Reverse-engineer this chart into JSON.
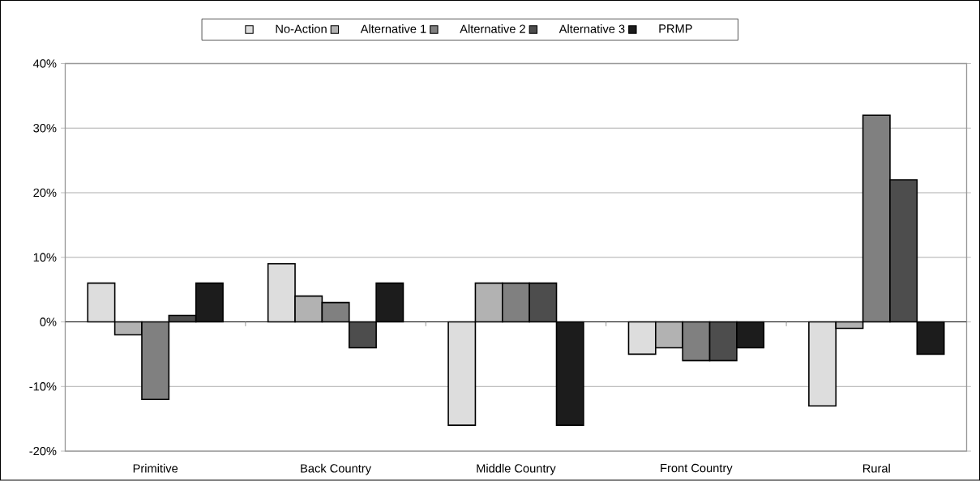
{
  "chart_data": {
    "type": "bar",
    "categories": [
      "Primitive",
      "Back Country",
      "Middle Country",
      "Front Country",
      "Rural"
    ],
    "series": [
      {
        "name": "No-Action",
        "color": "#dddddd",
        "values": [
          6,
          9,
          -16,
          -5,
          -13
        ]
      },
      {
        "name": "Alternative 1",
        "color": "#b2b2b2",
        "values": [
          -2,
          4,
          6,
          -4,
          -1
        ]
      },
      {
        "name": "Alternative 2",
        "color": "#808080",
        "values": [
          -12,
          3,
          6,
          -6,
          32
        ]
      },
      {
        "name": "Alternative 3",
        "color": "#4d4d4d",
        "values": [
          1,
          -4,
          6,
          -6,
          22
        ]
      },
      {
        "name": "PRMP",
        "color": "#1c1c1c",
        "values": [
          6,
          6,
          -16,
          -4,
          -5
        ]
      }
    ],
    "ylim": [
      -20,
      40
    ],
    "yticks": [
      {
        "value": -20,
        "label": "-20%"
      },
      {
        "value": -10,
        "label": "-10%"
      },
      {
        "value": 0,
        "label": "0%"
      },
      {
        "value": 10,
        "label": "10%"
      },
      {
        "value": 20,
        "label": "20%"
      },
      {
        "value": 30,
        "label": "30%"
      },
      {
        "value": 40,
        "label": "40%"
      }
    ],
    "grid": "y",
    "legend": "top"
  }
}
